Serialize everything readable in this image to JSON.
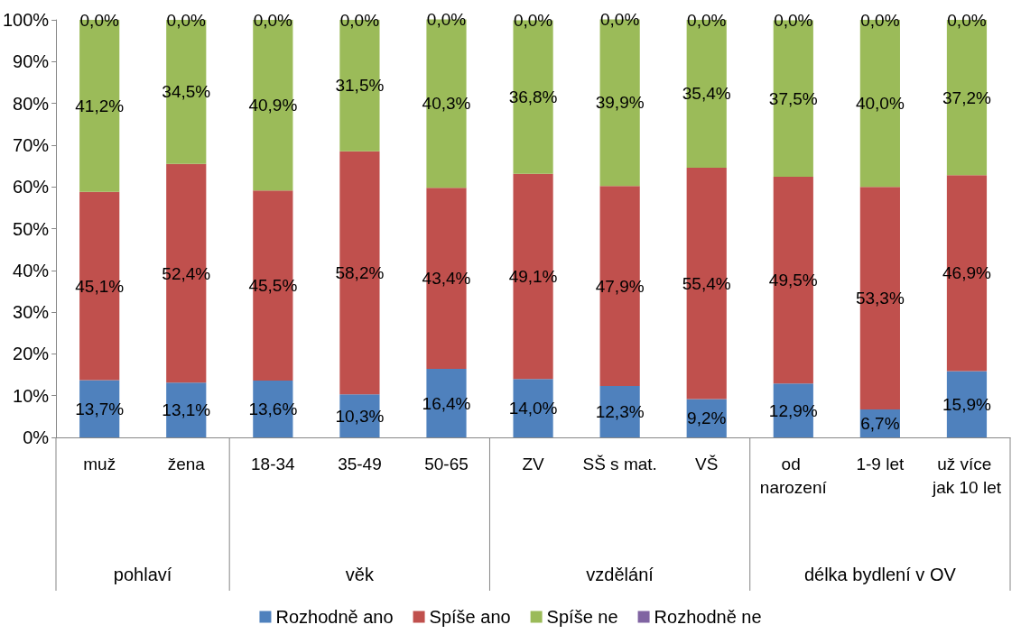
{
  "chart_data": {
    "type": "bar",
    "stacked": true,
    "legend": "bottom",
    "categories": [
      "muž",
      "žena",
      "18-34",
      "35-49",
      "50-65",
      "ZV",
      "SŠ s mat.",
      "VŠ",
      "od narození",
      "1-9 let",
      "už více jak 10 let"
    ],
    "series": [
      {
        "name": "Rozhodně ano",
        "color": "#4f81bd",
        "values": [
          13.7,
          13.1,
          13.6,
          10.3,
          16.4,
          14.0,
          12.3,
          9.2,
          12.9,
          6.7,
          15.9
        ],
        "value_labels": [
          "13,7%",
          "13,1%",
          "13,6%",
          "10,3%",
          "16,4%",
          "14,0%",
          "12,3%",
          "9,2%",
          "12,9%",
          "6,7%",
          "15,9%"
        ]
      },
      {
        "name": "Spíše ano",
        "color": "#c0504d",
        "values": [
          45.1,
          52.4,
          45.5,
          58.2,
          43.4,
          49.1,
          47.9,
          55.4,
          49.5,
          53.3,
          46.9
        ],
        "value_labels": [
          "45,1%",
          "52,4%",
          "45,5%",
          "58,2%",
          "43,4%",
          "49,1%",
          "47,9%",
          "55,4%",
          "49,5%",
          "53,3%",
          "46,9%"
        ]
      },
      {
        "name": "Spíše ne",
        "color": "#9bbb59",
        "values": [
          41.2,
          34.5,
          40.9,
          31.5,
          40.3,
          36.8,
          39.9,
          35.4,
          37.5,
          40.0,
          37.2
        ],
        "value_labels": [
          "41,2%",
          "34,5%",
          "40,9%",
          "31,5%",
          "40,3%",
          "36,8%",
          "39,9%",
          "35,4%",
          "37,5%",
          "40,0%",
          "37,2%"
        ]
      },
      {
        "name": "Rozhodně ne",
        "color": "#8064a2",
        "values": [
          0,
          0,
          0,
          0,
          0,
          0,
          0,
          0,
          0,
          0,
          0
        ],
        "value_labels": [
          "0,0%",
          "0,0%",
          "0,0%",
          "0,0%",
          "0,0%",
          "0,0%",
          "0,0%",
          "0,0%",
          "0,0%",
          "0,0%",
          "0,0%"
        ]
      }
    ],
    "ylim": [
      0,
      100
    ],
    "yticks": [
      {
        "value": 0,
        "label": "0%"
      },
      {
        "value": 10,
        "label": "10%"
      },
      {
        "value": 20,
        "label": "20%"
      },
      {
        "value": 30,
        "label": "30%"
      },
      {
        "value": 40,
        "label": "40%"
      },
      {
        "value": 50,
        "label": "50%"
      },
      {
        "value": 60,
        "label": "60%"
      },
      {
        "value": 70,
        "label": "70%"
      },
      {
        "value": 80,
        "label": "80%"
      },
      {
        "value": 90,
        "label": "90%"
      },
      {
        "value": 100,
        "label": "100%"
      }
    ],
    "annotations": [
      "pohlaví",
      "věk",
      "vzdělání",
      "délka bydlení v OV"
    ]
  }
}
